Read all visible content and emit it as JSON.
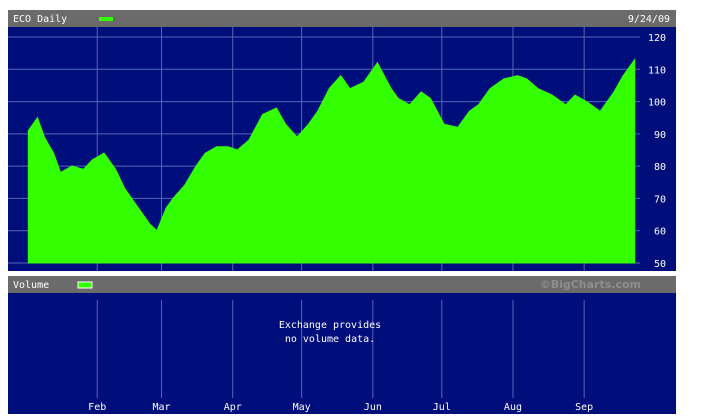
{
  "header": {
    "title": "ECO Daily",
    "date": "9/24/09"
  },
  "volume_panel": {
    "title": "Volume",
    "message_line1": "Exchange provides",
    "message_line2": "no volume data.",
    "watermark": "©BigCharts.com"
  },
  "colors": {
    "background": "#000e7c",
    "series": "#33ff00",
    "header_bar": "#6b6b6b",
    "grid": "#5a63b6"
  },
  "chart_data": {
    "type": "area",
    "title": "ECO Daily",
    "ylim": [
      50,
      120
    ],
    "yticks": [
      50,
      60,
      70,
      80,
      90,
      100,
      110,
      120
    ],
    "xlabel": "",
    "ylabel": "",
    "grid": true,
    "x_ticks": [
      "Feb",
      "Mar",
      "Apr",
      "May",
      "Jun",
      "Jul",
      "Aug",
      "Sep"
    ],
    "series": [
      {
        "name": "ECO Daily",
        "x": [
          "2009-01-02",
          "2009-01-06",
          "2009-01-09",
          "2009-01-13",
          "2009-01-16",
          "2009-01-21",
          "2009-01-26",
          "2009-01-30",
          "2009-02-04",
          "2009-02-09",
          "2009-02-13",
          "2009-02-18",
          "2009-02-24",
          "2009-02-27",
          "2009-03-03",
          "2009-03-06",
          "2009-03-11",
          "2009-03-16",
          "2009-03-20",
          "2009-03-25",
          "2009-03-30",
          "2009-04-03",
          "2009-04-08",
          "2009-04-14",
          "2009-04-20",
          "2009-04-24",
          "2009-04-29",
          "2009-05-04",
          "2009-05-08",
          "2009-05-13",
          "2009-05-18",
          "2009-05-22",
          "2009-05-28",
          "2009-06-03",
          "2009-06-09",
          "2009-06-12",
          "2009-06-17",
          "2009-06-22",
          "2009-06-26",
          "2009-07-02",
          "2009-07-08",
          "2009-07-13",
          "2009-07-17",
          "2009-07-22",
          "2009-07-28",
          "2009-08-03",
          "2009-08-07",
          "2009-08-12",
          "2009-08-18",
          "2009-08-24",
          "2009-08-28",
          "2009-09-02",
          "2009-09-08",
          "2009-09-14",
          "2009-09-18",
          "2009-09-23"
        ],
        "values": [
          91,
          95,
          89,
          84,
          78,
          80,
          79,
          82,
          84,
          79,
          73,
          68,
          62,
          60,
          67,
          70,
          74,
          80,
          84,
          86,
          86,
          85,
          88,
          96,
          98,
          93,
          89,
          93,
          97,
          104,
          108,
          104,
          106,
          112,
          104,
          101,
          99,
          103,
          101,
          93,
          92,
          97,
          99,
          104,
          107,
          108,
          107,
          104,
          102,
          99,
          102,
          100,
          97,
          103,
          108,
          113
        ]
      }
    ]
  }
}
